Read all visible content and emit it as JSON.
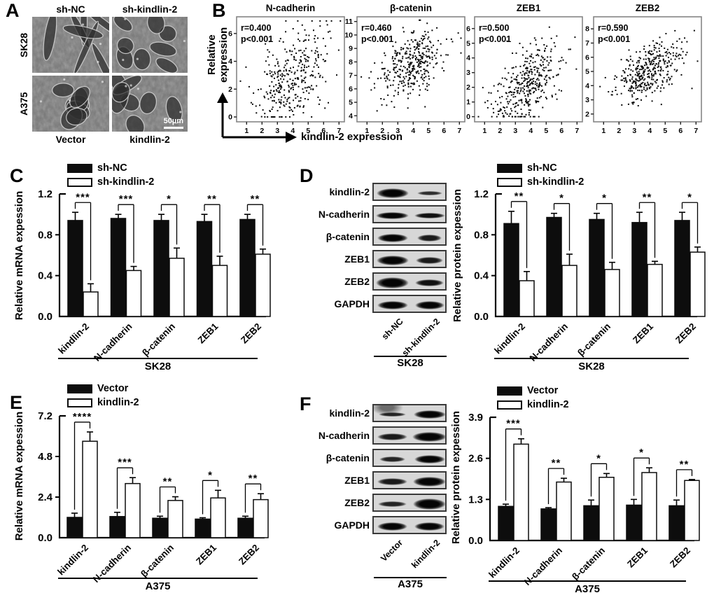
{
  "panels": {
    "A": {
      "label": "A",
      "col_labels": [
        "sh-NC",
        "sh-kindlin-2"
      ],
      "row_labels": [
        "SK28",
        "A375"
      ],
      "bottom_labels": [
        "Vector",
        "kindlin-2"
      ],
      "scale_bar_label": "50µm"
    },
    "B": {
      "label": "B",
      "ylabel": "Relative expression",
      "xlabel": "kindlin-2 expression"
    },
    "C": {
      "label": "C"
    },
    "D": {
      "label": "D"
    },
    "E": {
      "label": "E"
    },
    "F": {
      "label": "F"
    }
  },
  "blots": {
    "D": {
      "cell_line": "SK28",
      "lane_labels": [
        "sh-NC",
        "sh-kindlin-2"
      ],
      "rows": [
        {
          "label": "kindlin-2",
          "bands": [
            [
              0.92,
              0.55,
              1.0
            ],
            [
              0.72,
              0.22,
              0.8
            ]
          ]
        },
        {
          "label": "N-cadherin",
          "bands": [
            [
              0.95,
              0.42,
              1.0
            ],
            [
              0.88,
              0.34,
              0.95
            ]
          ]
        },
        {
          "label": "β-catenin",
          "bands": [
            [
              0.88,
              0.48,
              1.0
            ],
            [
              0.7,
              0.36,
              0.9
            ]
          ]
        },
        {
          "label": "ZEB1",
          "bands": [
            [
              0.92,
              0.55,
              1.0
            ],
            [
              0.78,
              0.38,
              0.9
            ]
          ]
        },
        {
          "label": "ZEB2",
          "bands": [
            [
              0.95,
              0.62,
              1.0
            ],
            [
              0.82,
              0.4,
              0.95
            ]
          ]
        },
        {
          "label": "GAPDH",
          "bands": [
            [
              0.88,
              0.46,
              1.0
            ],
            [
              0.84,
              0.44,
              1.0
            ]
          ]
        }
      ]
    },
    "F": {
      "cell_line": "A375",
      "lane_labels": [
        "Vector",
        "kindlin-2"
      ],
      "rows": [
        {
          "label": "kindlin-2",
          "bands": [
            [
              0.78,
              0.26,
              0.85
            ],
            [
              0.92,
              0.46,
              1.0
            ]
          ],
          "smudge": true
        },
        {
          "label": "N-cadherin",
          "bands": [
            [
              0.85,
              0.36,
              0.9
            ],
            [
              0.98,
              0.52,
              1.0
            ]
          ]
        },
        {
          "label": "β-catenin",
          "bands": [
            [
              0.75,
              0.3,
              0.85
            ],
            [
              0.88,
              0.46,
              1.0
            ]
          ]
        },
        {
          "label": "ZEB1",
          "bands": [
            [
              0.85,
              0.4,
              0.9
            ],
            [
              0.95,
              0.55,
              1.0
            ]
          ]
        },
        {
          "label": "ZEB2",
          "bands": [
            [
              0.82,
              0.32,
              0.85
            ],
            [
              0.95,
              0.58,
              1.0
            ]
          ]
        },
        {
          "label": "GAPDH",
          "bands": [
            [
              0.86,
              0.48,
              1.0
            ],
            [
              0.86,
              0.46,
              1.0
            ]
          ]
        }
      ]
    }
  },
  "chart_data": [
    {
      "panel": "B",
      "type": "scatter",
      "title": "N-cadherin",
      "r_label": "r=0.400",
      "p_label": "p<0.001",
      "r": 0.4,
      "n_points": 340,
      "xlabel": "kindlin-2 expression",
      "ylabel": "Relative expression",
      "x_ticks": [
        "1",
        "2",
        "3",
        "4",
        "5",
        "6",
        "7"
      ],
      "y_ticks": [
        "0",
        "2",
        "4",
        "6"
      ],
      "x_range": [
        0.35,
        7.35
      ],
      "y_range": [
        -0.35,
        7.2
      ],
      "x_mean": 3.9,
      "x_sd": 1.1,
      "y_mean": 2.7,
      "y_sd": 1.75,
      "y_clamp": [
        0,
        6.9
      ]
    },
    {
      "panel": "B",
      "type": "scatter",
      "title": "β-catenin",
      "r_label": "r=0.460",
      "p_label": "p<0.001",
      "r": 0.46,
      "n_points": 360,
      "xlabel": "kindlin-2 expression",
      "ylabel": "Relative expression",
      "x_ticks": [
        "1",
        "2",
        "3",
        "4",
        "5",
        "6",
        "7"
      ],
      "y_ticks": [
        "4",
        "5",
        "6",
        "7",
        "8",
        "9",
        "10",
        "11"
      ],
      "x_range": [
        0.35,
        7.35
      ],
      "y_range": [
        3.55,
        11.35
      ],
      "x_mean": 3.9,
      "x_sd": 1.05,
      "y_mean": 7.9,
      "y_sd": 1.25,
      "y_clamp": [
        3.9,
        11.1
      ]
    },
    {
      "panel": "B",
      "type": "scatter",
      "title": "ZEB1",
      "r_label": "r=0.500",
      "p_label": "p<0.001",
      "r": 0.5,
      "n_points": 380,
      "xlabel": "kindlin-2 expression",
      "ylabel": "Relative expression",
      "x_ticks": [
        "1",
        "2",
        "3",
        "4",
        "5",
        "6",
        "7"
      ],
      "y_ticks": [
        "0",
        "1",
        "2",
        "3",
        "4",
        "5",
        "6"
      ],
      "x_range": [
        0.35,
        7.35
      ],
      "y_range": [
        -0.35,
        6.8
      ],
      "x_mean": 3.75,
      "x_sd": 1.12,
      "y_mean": 2.2,
      "y_sd": 1.35,
      "y_clamp": [
        0,
        6.6
      ]
    },
    {
      "panel": "B",
      "type": "scatter",
      "title": "ZEB2",
      "r_label": "r=0.590",
      "p_label": "p<0.001",
      "r": 0.59,
      "n_points": 380,
      "xlabel": "kindlin-2 expression",
      "ylabel": "Relative expression",
      "x_ticks": [
        "1",
        "2",
        "3",
        "4",
        "5",
        "6",
        "7"
      ],
      "y_ticks": [
        "2",
        "3",
        "4",
        "5",
        "6",
        "7",
        "8"
      ],
      "x_range": [
        0.35,
        7.35
      ],
      "y_range": [
        1.45,
        8.85
      ],
      "x_mean": 3.9,
      "x_sd": 1.1,
      "y_mean": 4.9,
      "y_sd": 1.05,
      "y_clamp": [
        1.9,
        8.6
      ]
    },
    {
      "panel": "C",
      "type": "bar",
      "ylabel": "Relative mRNA expession",
      "cell_line": "SK28",
      "categories": [
        "kindlin-2",
        "N-cadherin",
        "β-catenin",
        "ZEB1",
        "ZEB2"
      ],
      "y_ticks": [
        "0.0",
        "0.4",
        "0.8",
        "1.2"
      ],
      "ymax": 1.2,
      "series": [
        {
          "name": "sh-NC",
          "fill": "#0d0d0d",
          "values": [
            0.94,
            0.96,
            0.94,
            0.93,
            0.95
          ],
          "errors": [
            0.08,
            0.04,
            0.06,
            0.07,
            0.05
          ]
        },
        {
          "name": "sh-kindlin-2",
          "fill": "#ffffff",
          "values": [
            0.24,
            0.45,
            0.57,
            0.5,
            0.61
          ],
          "errors": [
            0.08,
            0.04,
            0.1,
            0.09,
            0.05
          ]
        }
      ],
      "significance": [
        "***",
        "***",
        "*",
        "**",
        "**"
      ]
    },
    {
      "panel": "D",
      "type": "bar",
      "ylabel": "Relative protein expession",
      "cell_line": "SK28",
      "categories": [
        "kindlin-2",
        "N-cadherin",
        "β-catenin",
        "ZEB1",
        "ZEB2"
      ],
      "y_ticks": [
        "0.0",
        "0.4",
        "0.8",
        "1.2"
      ],
      "ymax": 1.2,
      "series": [
        {
          "name": "sh-NC",
          "fill": "#0d0d0d",
          "values": [
            0.91,
            0.97,
            0.95,
            0.92,
            0.94
          ],
          "errors": [
            0.12,
            0.04,
            0.06,
            0.1,
            0.08
          ]
        },
        {
          "name": "sh-kindlin-2",
          "fill": "#ffffff",
          "values": [
            0.35,
            0.5,
            0.46,
            0.51,
            0.63
          ],
          "errors": [
            0.09,
            0.11,
            0.07,
            0.03,
            0.05
          ]
        }
      ],
      "significance": [
        "**",
        "*",
        "*",
        "**",
        "*"
      ]
    },
    {
      "panel": "E",
      "type": "bar",
      "ylabel": "Relative mRNA expession",
      "cell_line": "A375",
      "categories": [
        "kindlin-2",
        "N-cadherin",
        "β-catenin",
        "ZEB1",
        "ZEB2"
      ],
      "y_ticks": [
        "0.0",
        "2.4",
        "4.8",
        "7.2"
      ],
      "ymax": 7.2,
      "series": [
        {
          "name": "Vector",
          "fill": "#0d0d0d",
          "values": [
            1.2,
            1.25,
            1.15,
            1.1,
            1.15
          ],
          "errors": [
            0.25,
            0.25,
            0.12,
            0.08,
            0.12
          ]
        },
        {
          "name": "kindlin-2",
          "fill": "#ffffff",
          "values": [
            5.7,
            3.2,
            2.2,
            2.35,
            2.25
          ],
          "errors": [
            0.55,
            0.35,
            0.22,
            0.45,
            0.35
          ]
        }
      ],
      "significance": [
        "****",
        "***",
        "**",
        "*",
        "**"
      ]
    },
    {
      "panel": "F",
      "type": "bar",
      "ylabel": "Relative protein expession",
      "cell_line": "A375",
      "categories": [
        "kindlin-2",
        "N-cadherin",
        "β-catenin",
        "ZEB1",
        "ZEB2"
      ],
      "y_ticks": [
        "0.0",
        "1.3",
        "2.6",
        "3.9"
      ],
      "ymax": 3.9,
      "series": [
        {
          "name": "Vector",
          "fill": "#0d0d0d",
          "values": [
            1.08,
            1.0,
            1.1,
            1.12,
            1.1
          ],
          "errors": [
            0.07,
            0.04,
            0.18,
            0.18,
            0.18
          ]
        },
        {
          "name": "kindlin-2",
          "fill": "#ffffff",
          "values": [
            3.05,
            1.85,
            2.0,
            2.15,
            1.9
          ],
          "errors": [
            0.17,
            0.12,
            0.12,
            0.15,
            0.03
          ]
        }
      ],
      "significance": [
        "***",
        "**",
        "*",
        "*",
        "**"
      ]
    }
  ]
}
